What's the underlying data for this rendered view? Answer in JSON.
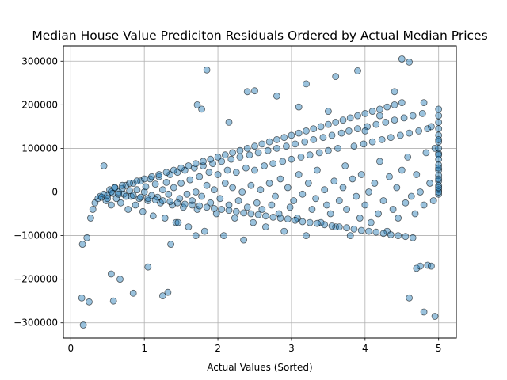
{
  "chart_data": {
    "type": "scatter",
    "title": "Median House Value Prediciton Residuals Ordered by Actual Median Prices",
    "xlabel": "Actual Values (Sorted)",
    "ylabel": "",
    "xlim": [
      -0.1,
      5.24
    ],
    "ylim": [
      -335000,
      335000
    ],
    "grid": true,
    "x_ticks": [
      {
        "value": 0,
        "label": "0"
      },
      {
        "value": 1,
        "label": "1"
      },
      {
        "value": 2,
        "label": "2"
      },
      {
        "value": 3,
        "label": "3"
      },
      {
        "value": 4,
        "label": "4"
      },
      {
        "value": 5,
        "label": "5"
      }
    ],
    "y_ticks": [
      {
        "value": -300000,
        "label": "−300000"
      },
      {
        "value": -200000,
        "label": "−200000"
      },
      {
        "value": -100000,
        "label": "−100000"
      },
      {
        "value": 0,
        "label": "0"
      },
      {
        "value": 100000,
        "label": "100000"
      },
      {
        "value": 200000,
        "label": "200000"
      },
      {
        "value": 300000,
        "label": "300000"
      }
    ],
    "point_color": "#1f77b4",
    "edge_color": "#000000",
    "points_x": [
      0.15,
      0.17,
      0.22,
      0.27,
      0.3,
      0.33,
      0.37,
      0.4,
      0.42,
      0.45,
      0.48,
      0.5,
      0.53,
      0.55,
      0.57,
      0.6,
      0.62,
      0.65,
      0.68,
      0.7,
      0.72,
      0.75,
      0.78,
      0.8,
      0.82,
      0.85,
      0.88,
      0.9,
      0.93,
      0.95,
      0.98,
      1.0,
      1.02,
      1.05,
      1.08,
      1.1,
      1.12,
      1.15,
      1.18,
      1.2,
      1.22,
      1.25,
      1.28,
      1.3,
      1.33,
      1.35,
      1.38,
      1.4,
      1.43,
      1.45,
      1.48,
      1.5,
      1.53,
      1.55,
      1.58,
      1.6,
      1.62,
      1.65,
      1.68,
      1.7,
      1.72,
      1.75,
      1.78,
      1.8,
      1.82,
      1.85,
      1.88,
      1.9,
      1.93,
      1.95,
      1.98,
      2.0,
      2.03,
      2.05,
      2.08,
      2.1,
      2.13,
      2.15,
      2.18,
      2.2,
      2.23,
      2.25,
      2.28,
      2.3,
      2.33,
      2.35,
      2.38,
      2.4,
      2.43,
      2.45,
      2.48,
      2.5,
      2.53,
      2.55,
      2.58,
      2.6,
      2.63,
      2.65,
      2.68,
      2.7,
      2.73,
      2.75,
      2.78,
      2.8,
      2.83,
      2.85,
      2.88,
      2.9,
      2.93,
      2.95,
      2.98,
      3.0,
      3.03,
      3.05,
      3.08,
      3.1,
      3.13,
      3.15,
      3.18,
      3.2,
      3.23,
      3.25,
      3.28,
      3.3,
      3.33,
      3.35,
      3.38,
      3.4,
      3.43,
      3.45,
      3.48,
      3.5,
      3.53,
      3.55,
      3.58,
      3.6,
      3.63,
      3.65,
      3.68,
      3.7,
      3.73,
      3.75,
      3.78,
      3.8,
      3.83,
      3.85,
      3.88,
      3.9,
      3.93,
      3.95,
      3.98,
      4.0,
      4.03,
      4.05,
      4.08,
      4.1,
      4.13,
      4.15,
      4.18,
      4.2,
      4.23,
      4.25,
      4.28,
      4.3,
      4.33,
      4.35,
      4.38,
      4.4,
      4.43,
      4.45,
      4.48,
      4.5,
      4.53,
      4.55,
      4.58,
      4.6,
      4.63,
      4.65,
      4.68,
      4.7,
      4.73,
      4.75,
      4.78,
      4.8,
      4.83,
      4.85,
      4.88,
      4.9,
      4.93,
      4.95,
      0.45,
      0.5,
      0.55,
      0.6,
      0.65,
      0.7,
      0.75,
      0.8,
      0.85,
      0.9,
      0.95,
      1.0,
      1.05,
      1.1,
      1.15,
      1.2,
      1.25,
      1.3,
      1.35,
      1.4,
      1.45,
      1.5,
      1.55,
      1.6,
      1.65,
      1.7,
      1.75,
      1.8,
      1.85,
      1.9,
      1.95,
      2.0,
      2.05,
      2.1,
      2.15,
      2.2,
      2.25,
      2.3,
      2.35,
      2.4,
      2.45,
      2.5,
      2.55,
      2.6,
      2.65,
      2.7,
      2.75,
      2.8,
      2.85,
      2.9,
      2.95,
      3.0,
      3.05,
      3.1,
      3.15,
      3.2,
      3.25,
      3.3,
      3.35,
      3.4,
      3.45,
      3.5,
      3.55,
      3.6,
      3.65,
      3.7,
      3.75,
      3.8,
      3.85,
      3.9,
      3.95,
      4.0,
      4.05,
      4.1,
      4.15,
      4.2,
      4.25,
      4.3,
      4.35,
      4.4,
      4.45,
      4.5,
      4.55,
      4.6,
      4.65,
      4.7,
      4.75,
      4.8,
      4.85,
      4.9,
      4.95,
      0.16,
      0.25,
      0.55,
      0.58,
      0.67,
      0.85,
      1.05,
      1.25,
      1.32,
      1.36,
      1.46,
      1.7,
      1.72,
      1.78,
      1.85,
      2.15,
      2.4,
      3.1,
      3.5,
      4.0,
      4.2,
      4.4,
      4.5,
      4.6,
      3.9,
      3.6,
      3.2,
      2.5,
      2.8,
      4.8,
      5.0,
      5.0,
      5.0,
      5.0,
      5.0,
      5.0,
      5.0,
      5.0,
      5.0,
      5.0,
      5.0,
      5.0,
      5.0,
      5.0,
      5.0,
      5.0,
      5.0,
      5.0,
      5.0,
      5.0,
      5.0,
      5.0,
      5.0,
      5.0,
      5.0,
      5.0,
      5.0,
      5.0,
      5.0,
      5.0
    ],
    "points_y": [
      -243000,
      -305000,
      -105000,
      -60000,
      -40000,
      -25000,
      -15000,
      -10000,
      -12000,
      -5000,
      -20000,
      -8000,
      5000,
      -30000,
      -3000,
      10000,
      -15000,
      0,
      -25000,
      8000,
      -5000,
      15000,
      -40000,
      3000,
      -10000,
      20000,
      -30000,
      5000,
      -15000,
      25000,
      -45000,
      0,
      12000,
      -20000,
      30000,
      -8000,
      -55000,
      18000,
      -12000,
      35000,
      -25000,
      5000,
      -60000,
      22000,
      -5000,
      40000,
      -30000,
      10000,
      -70000,
      45000,
      -15000,
      20000,
      -35000,
      50000,
      -5000,
      -80000,
      28000,
      -20000,
      55000,
      0,
      -40000,
      35000,
      -10000,
      60000,
      -90000,
      15000,
      45000,
      -25000,
      65000,
      5000,
      -50000,
      40000,
      -15000,
      70000,
      -100000,
      20000,
      50000,
      -30000,
      75000,
      10000,
      -60000,
      45000,
      -20000,
      80000,
      0,
      -110000,
      55000,
      -35000,
      85000,
      15000,
      -70000,
      50000,
      -25000,
      90000,
      5000,
      -40000,
      60000,
      -80000,
      95000,
      20000,
      -30000,
      65000,
      -10000,
      100000,
      -50000,
      30000,
      70000,
      -90000,
      105000,
      10000,
      -35000,
      75000,
      -20000,
      110000,
      -60000,
      40000,
      80000,
      -5000,
      115000,
      -100000,
      20000,
      85000,
      -40000,
      120000,
      -15000,
      50000,
      90000,
      -70000,
      125000,
      5000,
      -30000,
      95000,
      -50000,
      130000,
      25000,
      -80000,
      100000,
      -20000,
      135000,
      10000,
      60000,
      -40000,
      140000,
      -100000,
      30000,
      105000,
      -10000,
      145000,
      -60000,
      40000,
      110000,
      -30000,
      150000,
      0,
      -70000,
      115000,
      20000,
      155000,
      -50000,
      70000,
      120000,
      -20000,
      160000,
      -90000,
      35000,
      125000,
      -40000,
      165000,
      10000,
      -60000,
      130000,
      50000,
      170000,
      -25000,
      80000,
      135000,
      -10000,
      175000,
      -50000,
      40000,
      140000,
      0,
      180000,
      -30000,
      90000,
      145000,
      20000,
      150000,
      -20000,
      100000,
      60000,
      -15000,
      0,
      10000,
      -5000,
      15000,
      -10000,
      20000,
      -8000,
      25000,
      -12000,
      30000,
      -15000,
      35000,
      -18000,
      40000,
      -20000,
      45000,
      -22000,
      50000,
      -25000,
      55000,
      -28000,
      60000,
      -30000,
      65000,
      -32000,
      70000,
      -35000,
      75000,
      -38000,
      80000,
      -40000,
      85000,
      -42000,
      90000,
      -45000,
      95000,
      -48000,
      100000,
      -50000,
      105000,
      -52000,
      110000,
      -55000,
      115000,
      -58000,
      120000,
      -60000,
      125000,
      -62000,
      130000,
      -65000,
      135000,
      -68000,
      140000,
      -70000,
      145000,
      -72000,
      150000,
      -75000,
      155000,
      -78000,
      160000,
      -80000,
      165000,
      -82000,
      170000,
      -85000,
      175000,
      -88000,
      180000,
      -90000,
      185000,
      -92000,
      190000,
      -95000,
      195000,
      -98000,
      200000,
      -100000,
      205000,
      -102000,
      -243000,
      -105000,
      -175000,
      -170000,
      -275000,
      -168000,
      -170000,
      -285000,
      -120000,
      -252000,
      -188000,
      -250000,
      -200000,
      -232000,
      -172000,
      -238000,
      -230000,
      -120000,
      -70000,
      -100000,
      200000,
      190000,
      280000,
      160000,
      230000,
      195000,
      185000,
      140000,
      175000,
      230000,
      305000,
      298000,
      278000,
      265000,
      248000,
      232000,
      220000,
      205000,
      190000,
      175000,
      160000,
      145000,
      130000,
      115000,
      100000,
      88000,
      75000,
      62000,
      50000,
      38000,
      25000,
      15000,
      5000,
      -5000,
      0,
      10000,
      30000,
      55000,
      85000,
      120000
    ]
  }
}
